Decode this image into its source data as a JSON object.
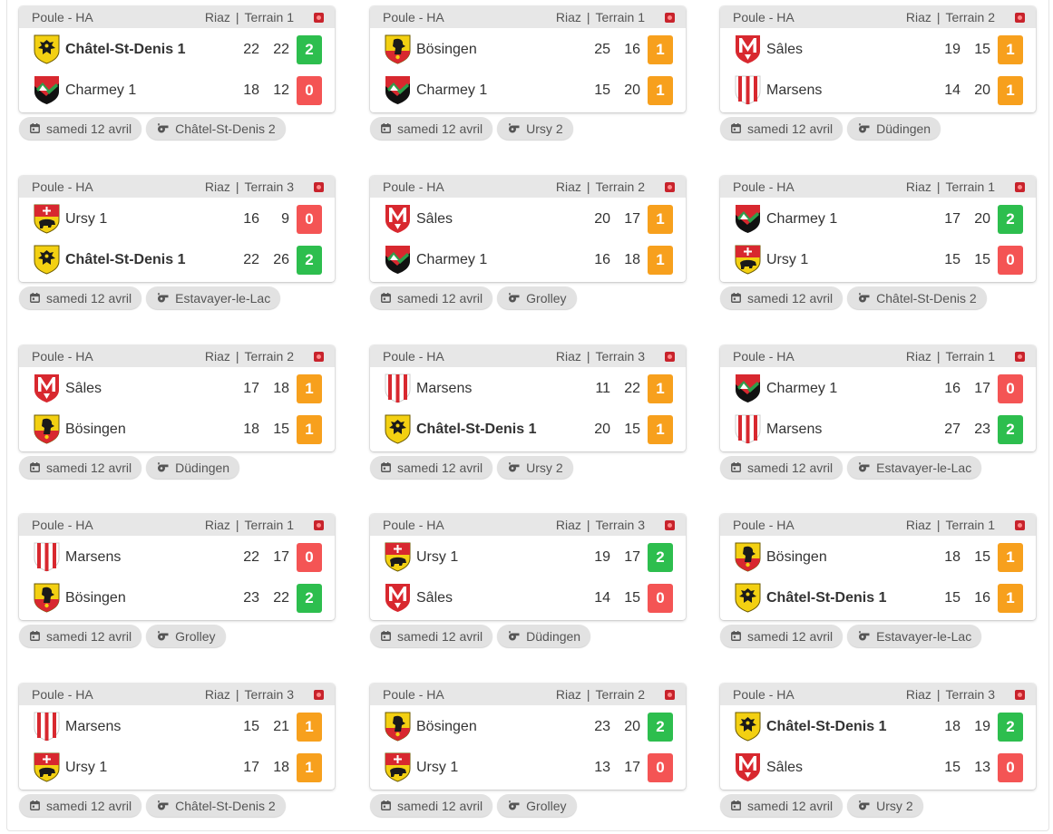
{
  "colors": {
    "win": "#2dbe4e",
    "draw": "#f7a01d",
    "loss": "#f45454"
  },
  "matches": [
    {
      "pool": "Poule - HA",
      "venue": "Riaz",
      "court": "Terrain 1",
      "date": "samedi 12 avril",
      "referee": "Châtel-St-Denis 2",
      "home": {
        "name": "Châtel-St-Denis 1",
        "crest": "chatel",
        "bold": true,
        "s1": "22",
        "s2": "22",
        "pts": "2",
        "res": "win"
      },
      "away": {
        "name": "Charmey 1",
        "crest": "charmey",
        "bold": false,
        "s1": "18",
        "s2": "12",
        "pts": "0",
        "res": "loss"
      }
    },
    {
      "pool": "Poule - HA",
      "venue": "Riaz",
      "court": "Terrain 1",
      "date": "samedi 12 avril",
      "referee": "Ursy 2",
      "home": {
        "name": "Bösingen",
        "crest": "bosingen",
        "bold": false,
        "s1": "25",
        "s2": "16",
        "pts": "1",
        "res": "draw"
      },
      "away": {
        "name": "Charmey 1",
        "crest": "charmey",
        "bold": false,
        "s1": "15",
        "s2": "20",
        "pts": "1",
        "res": "draw"
      }
    },
    {
      "pool": "Poule - HA",
      "venue": "Riaz",
      "court": "Terrain 2",
      "date": "samedi 12 avril",
      "referee": "Düdingen",
      "home": {
        "name": "Sâles",
        "crest": "sales",
        "bold": false,
        "s1": "19",
        "s2": "15",
        "pts": "1",
        "res": "draw"
      },
      "away": {
        "name": "Marsens",
        "crest": "marsens",
        "bold": false,
        "s1": "14",
        "s2": "20",
        "pts": "1",
        "res": "draw"
      }
    },
    {
      "pool": "Poule - HA",
      "venue": "Riaz",
      "court": "Terrain 3",
      "date": "samedi 12 avril",
      "referee": "Estavayer-le-Lac",
      "home": {
        "name": "Ursy 1",
        "crest": "ursy",
        "bold": false,
        "s1": "16",
        "s2": "9",
        "pts": "0",
        "res": "loss"
      },
      "away": {
        "name": "Châtel-St-Denis 1",
        "crest": "chatel",
        "bold": true,
        "s1": "22",
        "s2": "26",
        "pts": "2",
        "res": "win"
      }
    },
    {
      "pool": "Poule - HA",
      "venue": "Riaz",
      "court": "Terrain 2",
      "date": "samedi 12 avril",
      "referee": "Grolley",
      "home": {
        "name": "Sâles",
        "crest": "sales",
        "bold": false,
        "s1": "20",
        "s2": "17",
        "pts": "1",
        "res": "draw"
      },
      "away": {
        "name": "Charmey 1",
        "crest": "charmey",
        "bold": false,
        "s1": "16",
        "s2": "18",
        "pts": "1",
        "res": "draw"
      }
    },
    {
      "pool": "Poule - HA",
      "venue": "Riaz",
      "court": "Terrain 1",
      "date": "samedi 12 avril",
      "referee": "Châtel-St-Denis 2",
      "home": {
        "name": "Charmey 1",
        "crest": "charmey",
        "bold": false,
        "s1": "17",
        "s2": "20",
        "pts": "2",
        "res": "win"
      },
      "away": {
        "name": "Ursy 1",
        "crest": "ursy",
        "bold": false,
        "s1": "15",
        "s2": "15",
        "pts": "0",
        "res": "loss"
      }
    },
    {
      "pool": "Poule - HA",
      "venue": "Riaz",
      "court": "Terrain 2",
      "date": "samedi 12 avril",
      "referee": "Düdingen",
      "home": {
        "name": "Sâles",
        "crest": "sales",
        "bold": false,
        "s1": "17",
        "s2": "18",
        "pts": "1",
        "res": "draw"
      },
      "away": {
        "name": "Bösingen",
        "crest": "bosingen",
        "bold": false,
        "s1": "18",
        "s2": "15",
        "pts": "1",
        "res": "draw"
      }
    },
    {
      "pool": "Poule - HA",
      "venue": "Riaz",
      "court": "Terrain 3",
      "date": "samedi 12 avril",
      "referee": "Ursy 2",
      "home": {
        "name": "Marsens",
        "crest": "marsens",
        "bold": false,
        "s1": "11",
        "s2": "22",
        "pts": "1",
        "res": "draw"
      },
      "away": {
        "name": "Châtel-St-Denis 1",
        "crest": "chatel",
        "bold": true,
        "s1": "20",
        "s2": "15",
        "pts": "1",
        "res": "draw"
      }
    },
    {
      "pool": "Poule - HA",
      "venue": "Riaz",
      "court": "Terrain 1",
      "date": "samedi 12 avril",
      "referee": "Estavayer-le-Lac",
      "home": {
        "name": "Charmey 1",
        "crest": "charmey",
        "bold": false,
        "s1": "16",
        "s2": "17",
        "pts": "0",
        "res": "loss"
      },
      "away": {
        "name": "Marsens",
        "crest": "marsens",
        "bold": false,
        "s1": "27",
        "s2": "23",
        "pts": "2",
        "res": "win"
      }
    },
    {
      "pool": "Poule - HA",
      "venue": "Riaz",
      "court": "Terrain 1",
      "date": "samedi 12 avril",
      "referee": "Grolley",
      "home": {
        "name": "Marsens",
        "crest": "marsens",
        "bold": false,
        "s1": "22",
        "s2": "17",
        "pts": "0",
        "res": "loss"
      },
      "away": {
        "name": "Bösingen",
        "crest": "bosingen",
        "bold": false,
        "s1": "23",
        "s2": "22",
        "pts": "2",
        "res": "win"
      }
    },
    {
      "pool": "Poule - HA",
      "venue": "Riaz",
      "court": "Terrain 3",
      "date": "samedi 12 avril",
      "referee": "Düdingen",
      "home": {
        "name": "Ursy 1",
        "crest": "ursy",
        "bold": false,
        "s1": "19",
        "s2": "17",
        "pts": "2",
        "res": "win"
      },
      "away": {
        "name": "Sâles",
        "crest": "sales",
        "bold": false,
        "s1": "14",
        "s2": "15",
        "pts": "0",
        "res": "loss"
      }
    },
    {
      "pool": "Poule - HA",
      "venue": "Riaz",
      "court": "Terrain 1",
      "date": "samedi 12 avril",
      "referee": "Estavayer-le-Lac",
      "home": {
        "name": "Bösingen",
        "crest": "bosingen",
        "bold": false,
        "s1": "18",
        "s2": "15",
        "pts": "1",
        "res": "draw"
      },
      "away": {
        "name": "Châtel-St-Denis 1",
        "crest": "chatel",
        "bold": true,
        "s1": "15",
        "s2": "16",
        "pts": "1",
        "res": "draw"
      }
    },
    {
      "pool": "Poule - HA",
      "venue": "Riaz",
      "court": "Terrain 3",
      "date": "samedi 12 avril",
      "referee": "Châtel-St-Denis 2",
      "home": {
        "name": "Marsens",
        "crest": "marsens",
        "bold": false,
        "s1": "15",
        "s2": "21",
        "pts": "1",
        "res": "draw"
      },
      "away": {
        "name": "Ursy 1",
        "crest": "ursy",
        "bold": false,
        "s1": "17",
        "s2": "18",
        "pts": "1",
        "res": "draw"
      }
    },
    {
      "pool": "Poule - HA",
      "venue": "Riaz",
      "court": "Terrain 2",
      "date": "samedi 12 avril",
      "referee": "Grolley",
      "home": {
        "name": "Bösingen",
        "crest": "bosingen",
        "bold": false,
        "s1": "23",
        "s2": "20",
        "pts": "2",
        "res": "win"
      },
      "away": {
        "name": "Ursy 1",
        "crest": "ursy",
        "bold": false,
        "s1": "13",
        "s2": "17",
        "pts": "0",
        "res": "loss"
      }
    },
    {
      "pool": "Poule - HA",
      "venue": "Riaz",
      "court": "Terrain 3",
      "date": "samedi 12 avril",
      "referee": "Ursy 2",
      "home": {
        "name": "Châtel-St-Denis 1",
        "crest": "chatel",
        "bold": true,
        "s1": "18",
        "s2": "19",
        "pts": "2",
        "res": "win"
      },
      "away": {
        "name": "Sâles",
        "crest": "sales",
        "bold": false,
        "s1": "15",
        "s2": "13",
        "pts": "0",
        "res": "loss"
      }
    }
  ]
}
